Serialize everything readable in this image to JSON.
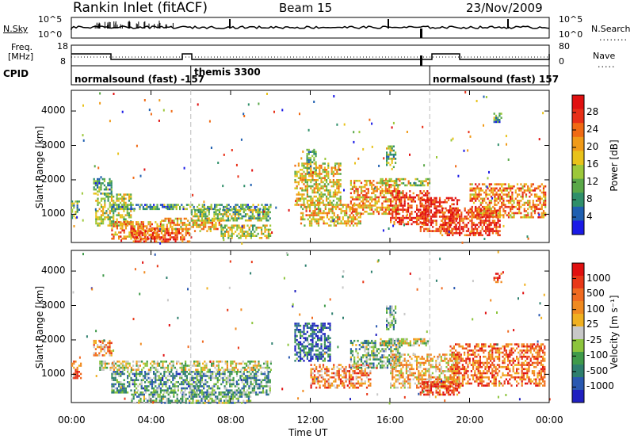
{
  "header": {
    "title": "Rankin Inlet (fitACF)",
    "beam": "Beam 15",
    "date": "23/Nov/2009"
  },
  "nsky": {
    "label": "N.Sky",
    "ticks": [
      "10^5",
      "10^0"
    ],
    "right_ticks": [
      "10^5",
      "10^0"
    ],
    "right_label": "N.Search"
  },
  "freq": {
    "label_line1": "Freq.",
    "label_line2": "[MHz]",
    "ticks": [
      "18",
      "8"
    ],
    "right_ticks": [
      "80",
      "0"
    ],
    "right_label": "Nave"
  },
  "cpid": {
    "label": "CPID",
    "segments": [
      {
        "text": "normalsound (fast) -157",
        "start_hour": 0
      },
      {
        "text": "themis 3300",
        "start_hour": 6.0
      },
      {
        "text": "normalsound (fast) 157",
        "start_hour": 18.0
      }
    ]
  },
  "chart_data": [
    {
      "type": "heatmap",
      "name": "power",
      "xlabel": "Time UT",
      "ylabel": "Slant Range [km]",
      "xlim": [
        0,
        24
      ],
      "ylim": [
        180,
        4600
      ],
      "yticks": [
        1000,
        2000,
        3000,
        4000
      ],
      "xticks": [
        "00:00",
        "04:00",
        "08:00",
        "12:00",
        "16:00",
        "20:00",
        "00:00"
      ],
      "colorbar": {
        "label": "Power [dB]",
        "ticks": [
          "28",
          "24",
          "20",
          "16",
          "12",
          "8",
          "4"
        ],
        "colors": [
          "#1a1ae6",
          "#1f5fb0",
          "#2f8f6a",
          "#5aa848",
          "#9cc83a",
          "#e8c21a",
          "#f09a18",
          "#f06a14",
          "#e83018",
          "#e01010"
        ]
      },
      "mode_boundaries_hours": [
        6.0,
        18.0
      ],
      "regions": [
        {
          "t0": 0.0,
          "t1": 0.4,
          "r0": 900,
          "r1": 1400,
          "level": 0.35
        },
        {
          "t0": 1.1,
          "t1": 2.0,
          "r0": 1600,
          "r1": 2050,
          "level": 0.3
        },
        {
          "t0": 1.2,
          "t1": 3.0,
          "r0": 700,
          "r1": 1600,
          "level": 0.45
        },
        {
          "t0": 2.0,
          "t1": 4.5,
          "r0": 300,
          "r1": 800,
          "level": 0.7
        },
        {
          "t0": 3.0,
          "t1": 6.0,
          "r0": 200,
          "r1": 600,
          "level": 0.82
        },
        {
          "t0": 4.5,
          "t1": 7.5,
          "r0": 500,
          "r1": 900,
          "level": 0.6
        },
        {
          "t0": 2.0,
          "t1": 10.0,
          "r0": 1150,
          "r1": 1300,
          "level": 0.3
        },
        {
          "t0": 6.0,
          "t1": 10.0,
          "r0": 800,
          "r1": 1150,
          "level": 0.4
        },
        {
          "t0": 7.5,
          "t1": 10.0,
          "r0": 300,
          "r1": 700,
          "level": 0.5
        },
        {
          "t0": 11.2,
          "t1": 13.5,
          "r0": 1300,
          "r1": 2500,
          "level": 0.55
        },
        {
          "t0": 11.5,
          "t1": 14.5,
          "r0": 700,
          "r1": 1300,
          "level": 0.6
        },
        {
          "t0": 14.0,
          "t1": 16.5,
          "r0": 1000,
          "r1": 2000,
          "level": 0.65
        },
        {
          "t0": 15.5,
          "t1": 18.0,
          "r0": 1850,
          "r1": 2050,
          "level": 0.5
        },
        {
          "t0": 16.0,
          "t1": 18.0,
          "r0": 700,
          "r1": 1700,
          "level": 0.85
        },
        {
          "t0": 17.5,
          "t1": 19.5,
          "r0": 500,
          "r1": 1500,
          "level": 0.9
        },
        {
          "t0": 18.5,
          "t1": 21.5,
          "r0": 400,
          "r1": 1200,
          "level": 0.85
        },
        {
          "t0": 20.0,
          "t1": 23.8,
          "r0": 900,
          "r1": 1900,
          "level": 0.7
        },
        {
          "t0": 15.8,
          "t1": 16.3,
          "r0": 2300,
          "r1": 3000,
          "level": 0.4
        },
        {
          "t0": 21.2,
          "t1": 21.6,
          "r0": 3700,
          "r1": 3950,
          "level": 0.3
        },
        {
          "t0": 11.8,
          "t1": 12.3,
          "r0": 2200,
          "r1": 2900,
          "level": 0.35
        }
      ]
    },
    {
      "type": "heatmap",
      "name": "velocity",
      "xlabel": "Time UT",
      "ylabel": "Slant Range [km]",
      "xlim": [
        0,
        24
      ],
      "ylim": [
        180,
        4600
      ],
      "yticks": [
        1000,
        2000,
        3000,
        4000
      ],
      "xticks": [
        "00:00",
        "04:00",
        "08:00",
        "12:00",
        "16:00",
        "20:00",
        "00:00"
      ],
      "colorbar": {
        "label": "Velocity [m s⁻¹]",
        "ticks": [
          "1000",
          "500",
          "100",
          "25",
          "-25",
          "-100",
          "-500",
          "-1000"
        ],
        "colors": [
          "#2020c0",
          "#2a58b0",
          "#2e7f6e",
          "#3f9a4a",
          "#8cc43c",
          "#c8c8c8",
          "#f0b020",
          "#f08a20",
          "#f06a20",
          "#e83818",
          "#e01010"
        ]
      },
      "mode_boundaries_hours": [
        6.0,
        18.0
      ],
      "regions": [
        {
          "t0": 0.0,
          "t1": 0.5,
          "r0": 900,
          "r1": 1400,
          "level": 0.72
        },
        {
          "t0": 1.1,
          "t1": 2.0,
          "r0": 1550,
          "r1": 2000,
          "level": 0.7
        },
        {
          "t0": 1.4,
          "t1": 10.0,
          "r0": 1150,
          "r1": 1400,
          "level": 0.5
        },
        {
          "t0": 2.0,
          "t1": 6.5,
          "r0": 500,
          "r1": 1100,
          "level": 0.3
        },
        {
          "t0": 6.0,
          "t1": 10.0,
          "r0": 400,
          "r1": 1100,
          "level": 0.32
        },
        {
          "t0": 3.0,
          "t1": 9.0,
          "r0": 200,
          "r1": 500,
          "level": 0.35
        },
        {
          "t0": 11.2,
          "t1": 13.0,
          "r0": 1400,
          "r1": 2500,
          "level": 0.15
        },
        {
          "t0": 12.0,
          "t1": 15.0,
          "r0": 600,
          "r1": 1300,
          "level": 0.72
        },
        {
          "t0": 14.0,
          "t1": 16.5,
          "r0": 1200,
          "r1": 2000,
          "level": 0.35
        },
        {
          "t0": 15.5,
          "t1": 18.0,
          "r0": 1850,
          "r1": 2050,
          "level": 0.5
        },
        {
          "t0": 16.0,
          "t1": 19.5,
          "r0": 600,
          "r1": 1600,
          "level": 0.6
        },
        {
          "t0": 19.0,
          "t1": 23.8,
          "r0": 700,
          "r1": 1900,
          "level": 0.78
        },
        {
          "t0": 17.5,
          "t1": 19.5,
          "r0": 400,
          "r1": 800,
          "level": 0.85
        },
        {
          "t0": 15.8,
          "t1": 16.3,
          "r0": 2300,
          "r1": 3000,
          "level": 0.3
        },
        {
          "t0": 21.2,
          "t1": 21.6,
          "r0": 3700,
          "r1": 3950,
          "level": 0.85
        }
      ]
    }
  ]
}
